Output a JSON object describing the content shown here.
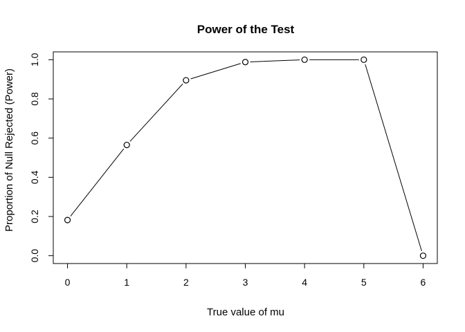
{
  "chart_data": {
    "type": "line",
    "title": "Power of the Test",
    "xlabel": "True value of mu",
    "ylabel": "Proportion of Null Rejected (Power)",
    "x": [
      0,
      1,
      2,
      3,
      4,
      5,
      6
    ],
    "series": [
      {
        "values": [
          0.182,
          0.565,
          0.895,
          0.988,
          1.0,
          1.0,
          0.0
        ]
      }
    ],
    "xticks": [
      0,
      1,
      2,
      3,
      4,
      5,
      6
    ],
    "xtick_labels": [
      "0",
      "1",
      "2",
      "3",
      "4",
      "5",
      "6"
    ],
    "yticks": [
      0.0,
      0.2,
      0.4,
      0.6,
      0.8,
      1.0
    ],
    "ytick_labels": [
      "0.0",
      "0.2",
      "0.4",
      "0.6",
      "0.8",
      "1.0"
    ],
    "xlim": [
      -0.24,
      6.24
    ],
    "ylim": [
      -0.04,
      1.04
    ],
    "grid": false,
    "legend": "none",
    "marker": "open-circle",
    "line_color": "#000000"
  }
}
